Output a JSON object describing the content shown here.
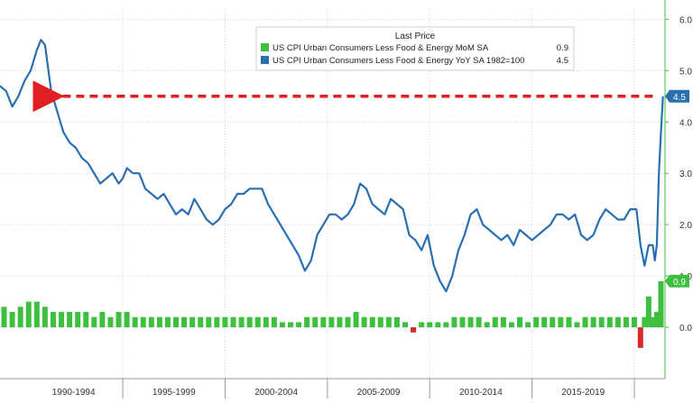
{
  "chart_data": {
    "type": "line",
    "legend": {
      "title": "Last Price",
      "placement": "top-center",
      "entries": [
        {
          "name": "US CPI Urban Consumers Less Food & Energy MoM SA",
          "value": "0.9",
          "color": "#3fbf3f"
        },
        {
          "name": "US CPI Urban Consumers Less Food & Energy YoY SA 1982=100",
          "value": "4.5",
          "color": "#2a6fb0"
        }
      ]
    },
    "x_ticks": [
      "1990-1994",
      "1995-1999",
      "2000-2004",
      "2005-2009",
      "2010-2014",
      "2015-2019"
    ],
    "x_range": [
      1989.0,
      2021.5
    ],
    "y_ticks": [
      "0.0",
      "1.0",
      "2.0",
      "3.0",
      "4.0",
      "5.0",
      "6.0"
    ],
    "y_range": [
      -1.0,
      6.2
    ],
    "grid": true,
    "last_value_labels": {
      "yoy": "4.5",
      "mom": "0.9"
    },
    "series": [
      {
        "name": "US CPI Urban Consumers Less Food & Energy YoY SA 1982=100",
        "type": "line",
        "color": "#2a6fb0",
        "x": [
          1989.0,
          1989.3,
          1989.6,
          1989.9,
          1990.2,
          1990.5,
          1990.8,
          1991.0,
          1991.2,
          1991.5,
          1991.8,
          1992.1,
          1992.4,
          1992.7,
          1993.0,
          1993.3,
          1993.6,
          1993.9,
          1994.2,
          1994.5,
          1994.8,
          1995.0,
          1995.2,
          1995.5,
          1995.8,
          1996.1,
          1996.4,
          1996.7,
          1997.0,
          1997.3,
          1997.6,
          1997.9,
          1998.2,
          1998.5,
          1998.8,
          1999.1,
          1999.4,
          1999.7,
          2000.0,
          2000.3,
          2000.6,
          2000.9,
          2001.2,
          2001.5,
          2001.8,
          2002.1,
          2002.4,
          2002.7,
          2003.0,
          2003.3,
          2003.6,
          2003.9,
          2004.2,
          2004.5,
          2004.8,
          2005.1,
          2005.4,
          2005.7,
          2006.0,
          2006.3,
          2006.6,
          2006.9,
          2007.2,
          2007.5,
          2007.8,
          2008.1,
          2008.4,
          2008.7,
          2009.0,
          2009.3,
          2009.6,
          2009.9,
          2010.2,
          2010.5,
          2010.8,
          2011.1,
          2011.4,
          2011.7,
          2012.0,
          2012.3,
          2012.6,
          2012.9,
          2013.2,
          2013.5,
          2013.8,
          2014.1,
          2014.4,
          2014.7,
          2015.0,
          2015.3,
          2015.6,
          2015.9,
          2016.2,
          2016.5,
          2016.8,
          2017.1,
          2017.4,
          2017.7,
          2018.0,
          2018.3,
          2018.6,
          2018.9,
          2019.2,
          2019.5,
          2019.8,
          2020.1,
          2020.3,
          2020.5,
          2020.7,
          2020.9,
          2021.0,
          2021.1,
          2021.2,
          2021.3,
          2021.4
        ],
        "values": [
          4.7,
          4.6,
          4.3,
          4.5,
          4.8,
          5.0,
          5.4,
          5.6,
          5.5,
          4.6,
          4.2,
          3.8,
          3.6,
          3.5,
          3.3,
          3.2,
          3.0,
          2.8,
          2.9,
          3.0,
          2.8,
          2.9,
          3.1,
          3.0,
          3.0,
          2.7,
          2.6,
          2.5,
          2.6,
          2.4,
          2.2,
          2.3,
          2.2,
          2.5,
          2.3,
          2.1,
          2.0,
          2.1,
          2.3,
          2.4,
          2.6,
          2.6,
          2.7,
          2.7,
          2.7,
          2.4,
          2.2,
          2.0,
          1.8,
          1.6,
          1.4,
          1.1,
          1.3,
          1.8,
          2.0,
          2.2,
          2.2,
          2.1,
          2.2,
          2.4,
          2.8,
          2.7,
          2.4,
          2.3,
          2.2,
          2.5,
          2.4,
          2.3,
          1.8,
          1.7,
          1.5,
          1.8,
          1.2,
          0.9,
          0.7,
          1.0,
          1.5,
          1.8,
          2.2,
          2.3,
          2.0,
          1.9,
          1.8,
          1.7,
          1.8,
          1.6,
          1.9,
          1.8,
          1.7,
          1.8,
          1.9,
          2.0,
          2.2,
          2.2,
          2.1,
          2.2,
          1.8,
          1.7,
          1.8,
          2.1,
          2.3,
          2.2,
          2.1,
          2.1,
          2.3,
          2.3,
          1.6,
          1.2,
          1.6,
          1.6,
          1.3,
          1.6,
          3.0,
          3.8,
          4.5
        ]
      },
      {
        "name": "US CPI Urban Consumers Less Food & Energy MoM SA",
        "type": "bar",
        "color": "#3fbf3f",
        "negative_color": "#d42a2a",
        "x": [
          1989.2,
          1989.6,
          1990.0,
          1990.4,
          1990.8,
          1991.2,
          1991.6,
          1992.0,
          1992.4,
          1992.8,
          1993.2,
          1993.6,
          1994.0,
          1994.4,
          1994.8,
          1995.2,
          1995.6,
          1996.0,
          1996.4,
          1996.8,
          1997.2,
          1997.6,
          1998.0,
          1998.4,
          1998.8,
          1999.2,
          1999.6,
          2000.0,
          2000.4,
          2000.8,
          2001.2,
          2001.6,
          2002.0,
          2002.4,
          2002.8,
          2003.2,
          2003.6,
          2004.0,
          2004.4,
          2004.8,
          2005.2,
          2005.6,
          2006.0,
          2006.4,
          2006.8,
          2007.2,
          2007.6,
          2008.0,
          2008.4,
          2008.8,
          2009.2,
          2009.6,
          2010.0,
          2010.4,
          2010.8,
          2011.2,
          2011.6,
          2012.0,
          2012.4,
          2012.8,
          2013.2,
          2013.6,
          2014.0,
          2014.4,
          2014.8,
          2015.2,
          2015.6,
          2016.0,
          2016.4,
          2016.8,
          2017.2,
          2017.6,
          2018.0,
          2018.4,
          2018.8,
          2019.2,
          2019.6,
          2020.0,
          2020.3,
          2020.5,
          2020.7,
          2020.9,
          2021.1,
          2021.3
        ],
        "values": [
          0.4,
          0.3,
          0.4,
          0.5,
          0.5,
          0.4,
          0.3,
          0.3,
          0.3,
          0.3,
          0.3,
          0.2,
          0.3,
          0.2,
          0.3,
          0.3,
          0.2,
          0.2,
          0.2,
          0.2,
          0.2,
          0.2,
          0.2,
          0.2,
          0.2,
          0.2,
          0.2,
          0.2,
          0.2,
          0.2,
          0.2,
          0.2,
          0.2,
          0.2,
          0.1,
          0.1,
          0.1,
          0.2,
          0.2,
          0.2,
          0.2,
          0.2,
          0.2,
          0.3,
          0.2,
          0.2,
          0.2,
          0.2,
          0.2,
          0.1,
          -0.1,
          0.1,
          0.1,
          0.1,
          0.1,
          0.2,
          0.2,
          0.2,
          0.2,
          0.1,
          0.2,
          0.2,
          0.1,
          0.2,
          0.1,
          0.2,
          0.2,
          0.2,
          0.2,
          0.2,
          0.1,
          0.2,
          0.2,
          0.2,
          0.2,
          0.2,
          0.2,
          0.2,
          -0.4,
          0.2,
          0.6,
          0.2,
          0.3,
          0.9
        ]
      }
    ],
    "annotation": {
      "type": "dashed-arrow",
      "color": "#e02020",
      "from": {
        "x": 2020.9,
        "y": 4.5
      },
      "to": {
        "x": 1991.4,
        "y": 4.5
      }
    }
  }
}
